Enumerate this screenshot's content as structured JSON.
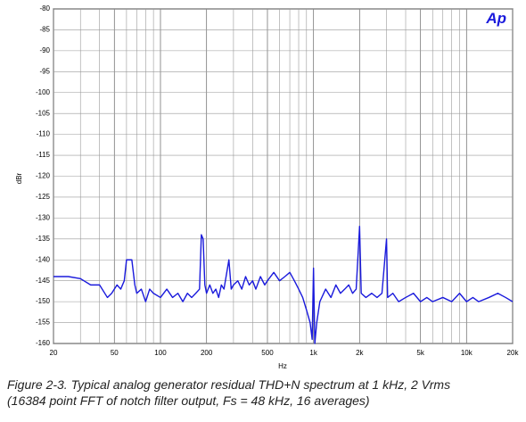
{
  "chart_data": {
    "type": "line",
    "logo": "Ap",
    "y_label": "dBr",
    "x_label": "Hz",
    "caption": [
      "Figure 2-3. Typical analog generator residual THD+N spectrum at 1 kHz, 2 Vrms",
      "(16384 point FFT of notch filter output, Fs = 48 kHz, 16 averages)"
    ],
    "x_log": true,
    "grid": true,
    "color": "#1a1adc",
    "xlim": [
      20,
      20000
    ],
    "ylim": [
      -160,
      -80
    ],
    "yticks": [
      -80,
      -85,
      -90,
      -95,
      -100,
      -105,
      -110,
      -115,
      -120,
      -125,
      -130,
      -135,
      -140,
      -145,
      -150,
      -155,
      -160
    ],
    "xticks": [
      20,
      50,
      100,
      200,
      500,
      {
        "value": 1000,
        "label": "1k"
      },
      {
        "value": 2000,
        "label": "2k"
      },
      {
        "value": 5000,
        "label": "5k"
      },
      {
        "value": 10000,
        "label": "10k"
      },
      {
        "value": 20000,
        "label": "20k"
      }
    ],
    "xminorticks": [
      30,
      40,
      60,
      70,
      80,
      90,
      300,
      400,
      600,
      700,
      800,
      900,
      3000,
      4000,
      6000,
      7000,
      8000,
      9000
    ],
    "x": [
      20,
      25,
      30,
      35,
      40,
      45,
      48,
      52,
      55,
      58,
      60,
      65,
      68,
      70,
      75,
      80,
      85,
      90,
      100,
      110,
      120,
      130,
      140,
      150,
      160,
      170,
      180,
      185,
      190,
      195,
      200,
      210,
      220,
      230,
      240,
      250,
      260,
      280,
      290,
      300,
      320,
      340,
      360,
      380,
      400,
      420,
      450,
      480,
      500,
      550,
      600,
      650,
      700,
      750,
      800,
      850,
      900,
      950,
      980,
      1000,
      1020,
      1050,
      1100,
      1200,
      1300,
      1400,
      1500,
      1600,
      1700,
      1800,
      1900,
      2000,
      2050,
      2200,
      2400,
      2600,
      2800,
      3000,
      3050,
      3300,
      3600,
      4000,
      4500,
      5000,
      5500,
      6000,
      7000,
      8000,
      9000,
      10000,
      11000,
      12000,
      14000,
      16000,
      18000,
      20000
    ],
    "values": [
      -144,
      -144,
      -144.5,
      -146,
      -146,
      -149,
      -148,
      -146,
      -147,
      -145,
      -140,
      -140,
      -146,
      -148,
      -147,
      -150,
      -147,
      -148,
      -149,
      -147,
      -149,
      -148,
      -150,
      -148,
      -149,
      -148,
      -147,
      -134,
      -135,
      -146,
      -148,
      -146,
      -148,
      -147,
      -149,
      -146,
      -147,
      -140,
      -147,
      -146,
      -145,
      -147,
      -144,
      -146,
      -145,
      -147,
      -144,
      -146,
      -145,
      -143,
      -145,
      -144,
      -143,
      -145,
      -147,
      -149,
      -152,
      -155,
      -159,
      -142,
      -160,
      -155,
      -150,
      -147,
      -149,
      -146,
      -148,
      -147,
      -146,
      -148,
      -147,
      -132,
      -148,
      -149,
      -148,
      -149,
      -148,
      -135,
      -149,
      -148,
      -150,
      -149,
      -148,
      -150,
      -149,
      -150,
      -149,
      -150,
      -148,
      -150,
      -149,
      -150,
      -149,
      -148,
      -149,
      -150
    ]
  }
}
